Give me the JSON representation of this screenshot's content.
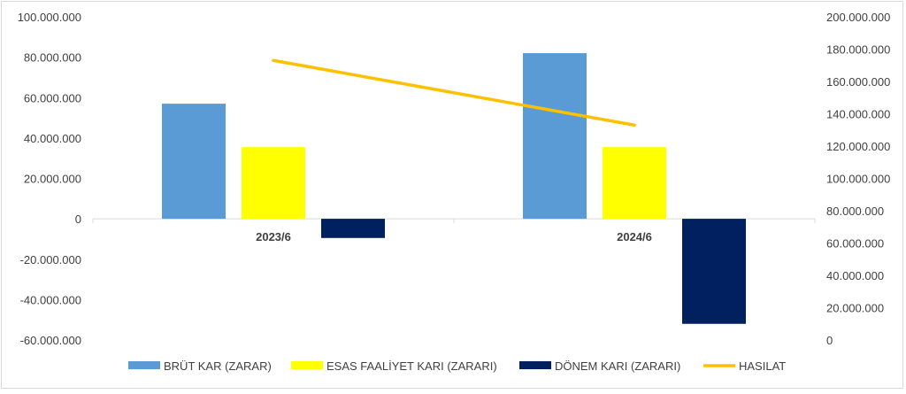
{
  "chart_data": {
    "type": "bar",
    "categories": [
      "2023/6",
      "2024/6"
    ],
    "series": [
      {
        "name": "BRÜT KAR (ZARAR)",
        "kind": "bar",
        "axis": "left",
        "color": "#5b9bd5",
        "values": [
          57000000,
          82000000
        ]
      },
      {
        "name": "ESAS FAALİYET KARI (ZARARI)",
        "kind": "bar",
        "axis": "left",
        "color": "#ffff00",
        "values": [
          35500000,
          35500000
        ]
      },
      {
        "name": "DÖNEM KARI (ZARARI)",
        "kind": "bar",
        "axis": "left",
        "color": "#002060",
        "values": [
          -9500000,
          -52000000
        ]
      },
      {
        "name": "HASILAT",
        "kind": "line",
        "axis": "right",
        "color": "#ffc000",
        "values": [
          173000000,
          133000000
        ]
      }
    ],
    "y_left": {
      "ylim": [
        -60000000,
        100000000
      ],
      "ticks": [
        100000000,
        80000000,
        60000000,
        40000000,
        20000000,
        0,
        -20000000,
        -40000000,
        -60000000
      ],
      "tick_labels": [
        "100.000.000",
        "80.000.000",
        "60.000.000",
        "40.000.000",
        "20.000.000",
        "0",
        "-20.000.000",
        "-40.000.000",
        "-60.000.000"
      ]
    },
    "y_right": {
      "ylim": [
        0,
        200000000
      ],
      "ticks": [
        200000000,
        180000000,
        160000000,
        140000000,
        120000000,
        100000000,
        80000000,
        60000000,
        40000000,
        20000000,
        0
      ],
      "tick_labels": [
        "200.000.000",
        "180.000.000",
        "160.000.000",
        "140.000.000",
        "120.000.000",
        "100.000.000",
        "80.000.000",
        "60.000.000",
        "40.000.000",
        "20.000.000",
        "0"
      ]
    },
    "grid": false,
    "legend_position": "bottom",
    "title": "",
    "xlabel": "",
    "ylabel": ""
  }
}
